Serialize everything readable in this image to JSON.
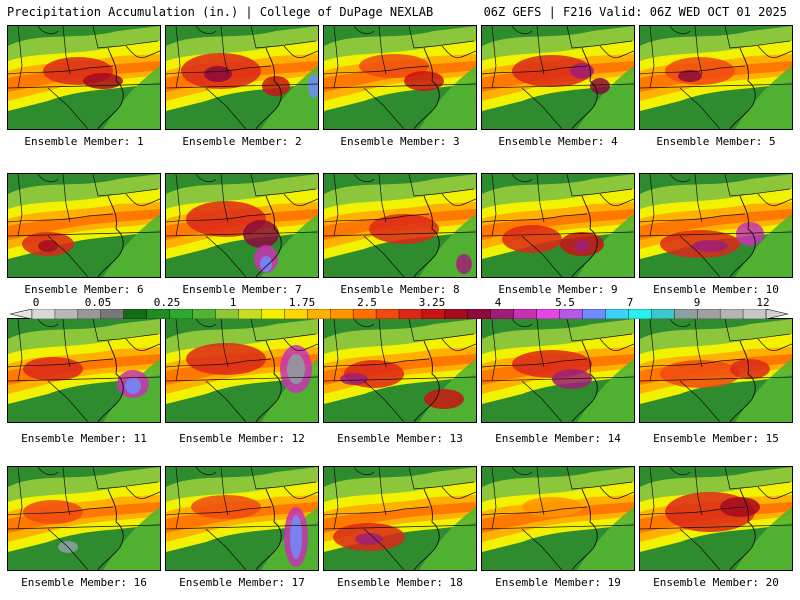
{
  "header": {
    "title": "Precipitation Accumulation (in.) | College of DuPage NEXLAB",
    "run_info": "06Z GEFS | F216 Valid: 06Z WED OCT 01 2025"
  },
  "scale": {
    "labels": [
      "0",
      "0.05",
      "0.25",
      "1",
      "1.75",
      "2.5",
      "3.25",
      "4",
      "5.5",
      "7",
      "9",
      "12"
    ],
    "colors": [
      "#d8d8d8",
      "#b8b8b8",
      "#989898",
      "#787878",
      "#176a17",
      "#208c20",
      "#2ea82e",
      "#54b432",
      "#8cc63a",
      "#c8dc24",
      "#f2f200",
      "#ffd700",
      "#ffb000",
      "#ff9400",
      "#ff7000",
      "#f04a10",
      "#dc2818",
      "#c81414",
      "#a50a1e",
      "#8c0a3c",
      "#a01e78",
      "#c832b4",
      "#e646e6",
      "#b45ae6",
      "#6e8cff",
      "#3cd2f5",
      "#28f0f0",
      "#3cc8c8",
      "#8ca0a0",
      "#a0a0a0",
      "#b4b4b4",
      "#c8c8c8"
    ]
  },
  "panels": [
    {
      "label": "Ensemble Member: 1"
    },
    {
      "label": "Ensemble Member: 2"
    },
    {
      "label": "Ensemble Member: 3"
    },
    {
      "label": "Ensemble Member: 4"
    },
    {
      "label": "Ensemble Member: 5"
    },
    {
      "label": "Ensemble Member: 6"
    },
    {
      "label": "Ensemble Member: 7"
    },
    {
      "label": "Ensemble Member: 8"
    },
    {
      "label": "Ensemble Member: 9"
    },
    {
      "label": "Ensemble Member: 10"
    },
    {
      "label": "Ensemble Member: 11"
    },
    {
      "label": "Ensemble Member: 12"
    },
    {
      "label": "Ensemble Member: 13"
    },
    {
      "label": "Ensemble Member: 14"
    },
    {
      "label": "Ensemble Member: 15"
    },
    {
      "label": "Ensemble Member: 16"
    },
    {
      "label": "Ensemble Member: 17"
    },
    {
      "label": "Ensemble Member: 18"
    },
    {
      "label": "Ensemble Member: 19"
    },
    {
      "label": "Ensemble Member: 20"
    }
  ]
}
